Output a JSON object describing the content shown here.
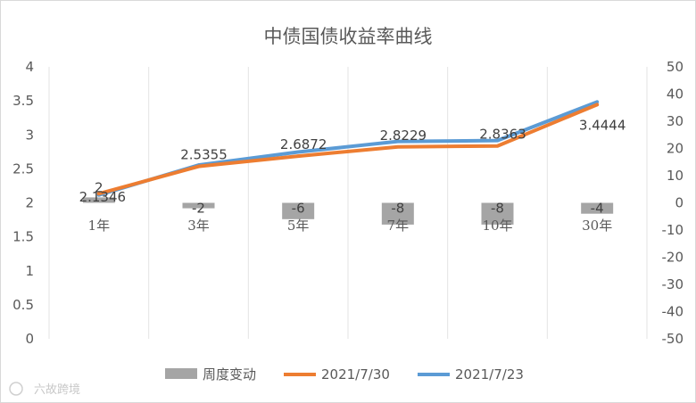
{
  "chart_data": {
    "type": "bar",
    "title": "中债国债收益率曲线",
    "categories": [
      "1年",
      "3年",
      "5年",
      "7年",
      "10年",
      "30年"
    ],
    "series": [
      {
        "name": "周度变动",
        "type": "bar",
        "axis": "right",
        "values": [
          2,
          -2,
          -6,
          -8,
          -8,
          -4
        ],
        "color": "#a5a5a5"
      },
      {
        "name": "2021/7/30",
        "type": "line",
        "axis": "left",
        "values": [
          2.1346,
          2.5355,
          2.6872,
          2.8229,
          2.8363,
          3.4444
        ],
        "color": "#ed7d31"
      },
      {
        "name": "2021/7/23",
        "type": "line",
        "axis": "left",
        "values": [
          2.1146,
          2.5555,
          2.7472,
          2.9029,
          2.9163,
          3.4844
        ],
        "color": "#5b9bd5"
      }
    ],
    "y_left": {
      "min": 0,
      "max": 4,
      "step": 0.5,
      "ticks": [
        "0",
        "0.5",
        "1",
        "1.5",
        "2",
        "2.5",
        "3",
        "3.5",
        "4"
      ]
    },
    "y_right": {
      "min": -50,
      "max": 50,
      "step": 10,
      "ticks": [
        "-50",
        "-40",
        "-30",
        "-20",
        "-10",
        "0",
        "10",
        "20",
        "30",
        "40",
        "50"
      ]
    },
    "bar_labels": [
      "2",
      "-2",
      "-6",
      "-8",
      "-8",
      "-4"
    ],
    "line_labels": [
      "2.1346",
      "2.5355",
      "2.6872",
      "2.8229",
      "2.8363",
      "3.4444"
    ],
    "legend": {
      "position": "bottom",
      "entries": [
        "周度变动",
        "2021/7/30",
        "2021/7/23"
      ]
    },
    "grid": {
      "vertical": true,
      "horizontal": false
    }
  },
  "watermark": "六故跨境"
}
